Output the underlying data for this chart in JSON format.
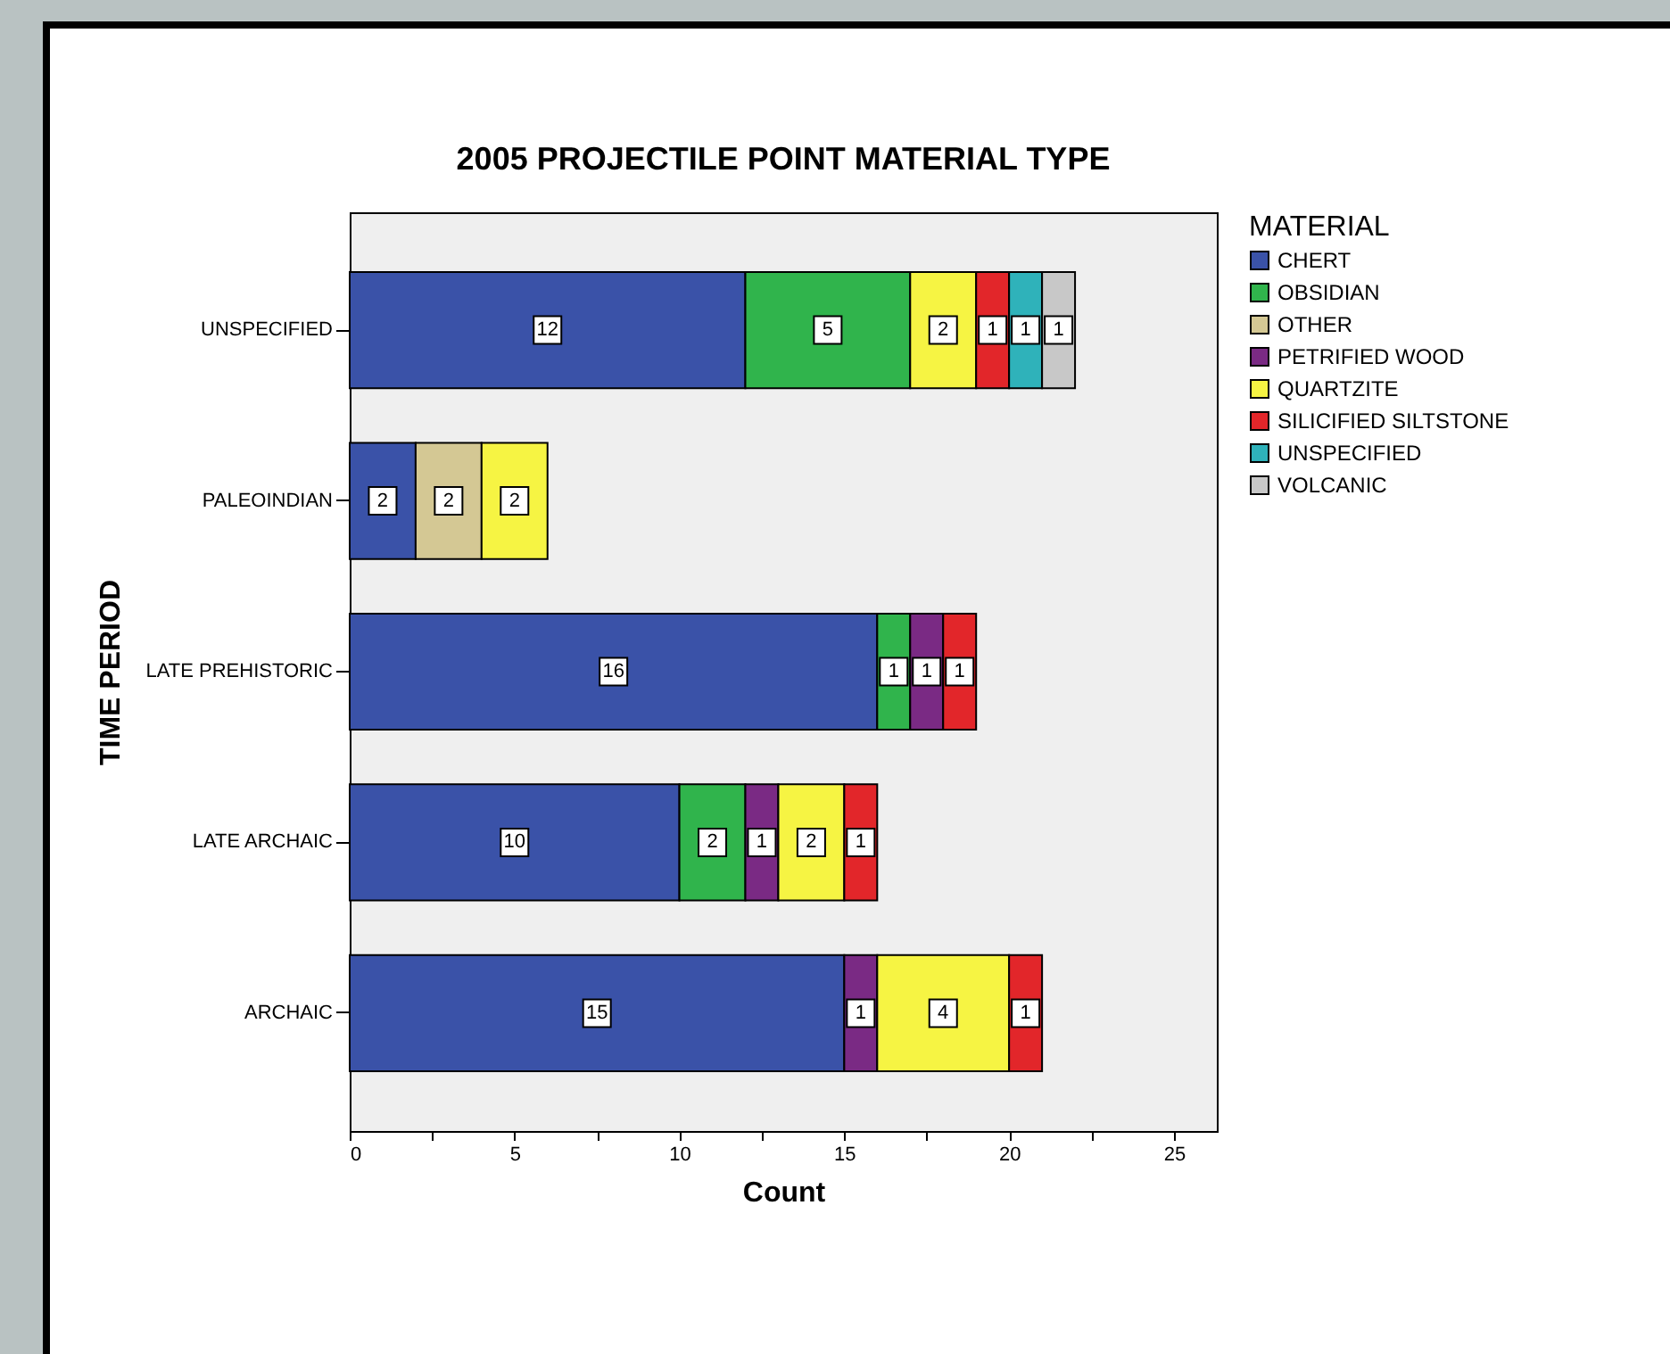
{
  "chart_data": {
    "type": "bar",
    "orientation": "horizontal",
    "stacked": true,
    "title": "2005 PROJECTILE POINT MATERIAL TYPE",
    "xlabel": "Count",
    "ylabel": "TIME PERIOD",
    "legend_title": "MATERIAL",
    "legend": "top right",
    "data_labels": true,
    "grid": false,
    "categories": [
      "UNSPECIFIED",
      "PALEOINDIAN",
      "LATE PREHISTORIC",
      "LATE ARCHAIC",
      "ARCHAIC"
    ],
    "xlim": [
      0,
      26.3
    ],
    "xticks": [
      0,
      {
        "value": 2.5,
        "label": null
      },
      5,
      {
        "value": 7.5,
        "label": null
      },
      10,
      {
        "value": 12.5,
        "label": null
      },
      15,
      {
        "value": 17.5,
        "label": null
      },
      20,
      {
        "value": 22.5,
        "label": null
      },
      25
    ],
    "series": [
      {
        "name": "CHERT",
        "color": "#3a52a8",
        "values": [
          12,
          2,
          16,
          10,
          15
        ]
      },
      {
        "name": "OBSIDIAN",
        "color": "#30b44c",
        "values": [
          5,
          null,
          1,
          2,
          null
        ]
      },
      {
        "name": "OTHER",
        "color": "#d4c894",
        "values": [
          null,
          2,
          null,
          null,
          null
        ]
      },
      {
        "name": "PETRIFIED WOOD",
        "color": "#7a2a84",
        "values": [
          null,
          null,
          1,
          1,
          1
        ]
      },
      {
        "name": "QUARTZITE",
        "color": "#f6f443",
        "values": [
          2,
          2,
          null,
          2,
          4
        ]
      },
      {
        "name": "SILICIFIED SILTSTONE",
        "color": "#e2262a",
        "values": [
          1,
          null,
          1,
          1,
          1
        ]
      },
      {
        "name": "UNSPECIFIED",
        "color": "#2fb2ba",
        "values": [
          1,
          null,
          null,
          null,
          null
        ]
      },
      {
        "name": "VOLCANIC",
        "color": "#c8c8c8",
        "values": [
          1,
          null,
          null,
          null,
          null
        ]
      }
    ]
  }
}
